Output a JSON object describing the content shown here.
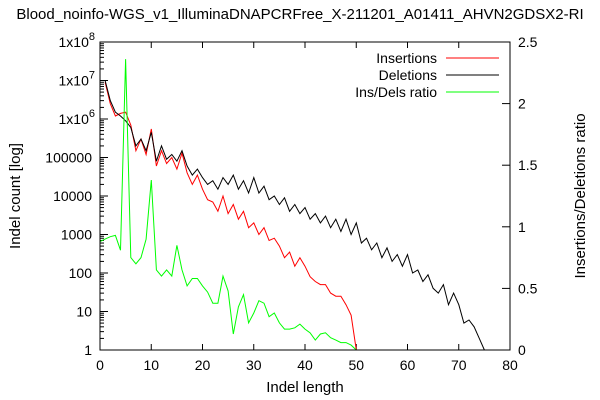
{
  "chart_data": {
    "type": "line",
    "title": "Blood_noinfo-WGS_v1_IlluminaDNAPCRFree_X-211201_A01411_AHVN2GDSX2-RI",
    "xlabel": "Indel length",
    "ylabel": "Indel count [log]",
    "y2label": "Insertions/Deletions ratio",
    "x_range": [
      0,
      80
    ],
    "y_scale": "log",
    "y_range": [
      1,
      100000000
    ],
    "y2_range": [
      0,
      2.5
    ],
    "x_ticks": [
      "0",
      "10",
      "20",
      "30",
      "40",
      "50",
      "60",
      "70",
      "80"
    ],
    "y_ticks": [
      "1",
      "10",
      "100",
      "1000",
      "10000",
      "100000",
      "1x10",
      "1x10",
      "1x10"
    ],
    "y_tick_exponents": [
      "",
      "",
      "",
      "",
      "",
      "",
      "6",
      "7",
      "8"
    ],
    "y2_ticks": [
      "0",
      "0.5",
      "1",
      "1.5",
      "2",
      "2.5"
    ],
    "legend_position": "top-right",
    "series": [
      {
        "name": "Insertions",
        "color": "#ff0000",
        "axis": "left",
        "x": [
          1,
          2,
          3,
          4,
          5,
          6,
          7,
          8,
          9,
          10,
          11,
          12,
          13,
          14,
          15,
          16,
          17,
          18,
          19,
          20,
          21,
          22,
          23,
          24,
          25,
          26,
          27,
          28,
          29,
          30,
          31,
          32,
          33,
          34,
          35,
          36,
          37,
          38,
          39,
          40,
          41,
          42,
          43,
          44,
          45,
          46,
          47,
          48,
          49,
          50
        ],
        "y": [
          9000000,
          2500000,
          1200000,
          1400000,
          1500000,
          700000,
          150000,
          300000,
          120000,
          550000,
          60000,
          150000,
          70000,
          100000,
          50000,
          130000,
          40000,
          20000,
          35000,
          15000,
          8000,
          7000,
          4000,
          10000,
          3500,
          6000,
          2500,
          4000,
          1500,
          2000,
          1000,
          1500,
          700,
          800,
          500,
          250,
          350,
          150,
          250,
          150,
          80,
          60,
          50,
          50,
          30,
          25,
          25,
          15,
          8,
          1
        ]
      },
      {
        "name": "Deletions",
        "color": "#000000",
        "axis": "left",
        "x": [
          1,
          2,
          3,
          4,
          5,
          6,
          7,
          8,
          9,
          10,
          11,
          12,
          13,
          14,
          15,
          16,
          17,
          18,
          19,
          20,
          21,
          22,
          23,
          24,
          25,
          26,
          27,
          28,
          29,
          30,
          31,
          32,
          33,
          34,
          35,
          36,
          37,
          38,
          39,
          40,
          41,
          42,
          43,
          44,
          45,
          46,
          47,
          48,
          49,
          50,
          51,
          52,
          53,
          54,
          55,
          56,
          57,
          58,
          59,
          60,
          61,
          62,
          63,
          64,
          65,
          66,
          67,
          68,
          69,
          70,
          71,
          72,
          73,
          74,
          75
        ],
        "y": [
          10000000,
          3000000,
          1500000,
          1200000,
          900000,
          600000,
          200000,
          300000,
          150000,
          450000,
          80000,
          200000,
          90000,
          120000,
          80000,
          150000,
          60000,
          35000,
          50000,
          30000,
          20000,
          25000,
          15000,
          30000,
          20000,
          35000,
          15000,
          25000,
          12000,
          30000,
          12000,
          18000,
          8000,
          10000,
          6000,
          9000,
          4000,
          6000,
          3500,
          5000,
          2500,
          3500,
          2000,
          3000,
          1500,
          2500,
          1200,
          2500,
          1000,
          2000,
          600,
          800,
          400,
          600,
          250,
          450,
          200,
          300,
          150,
          300,
          100,
          120,
          60,
          90,
          40,
          30,
          50,
          15,
          30,
          15,
          5,
          6,
          4,
          2,
          1
        ]
      },
      {
        "name": "Ins/Dels ratio",
        "color": "#00ff00",
        "axis": "right",
        "x": [
          0,
          1,
          2,
          3,
          4,
          5,
          6,
          7,
          8,
          9,
          10,
          11,
          12,
          13,
          14,
          15,
          16,
          17,
          18,
          19,
          20,
          21,
          22,
          23,
          24,
          25,
          26,
          27,
          28,
          29,
          30,
          31,
          32,
          33,
          34,
          35,
          36,
          37,
          38,
          39,
          40,
          41,
          42,
          43,
          44,
          45,
          46,
          47,
          48,
          49,
          50
        ],
        "y": [
          0.88,
          0.9,
          0.92,
          0.93,
          0.81,
          2.36,
          0.75,
          0.7,
          0.75,
          0.9,
          1.38,
          0.65,
          0.6,
          0.65,
          0.6,
          0.85,
          0.65,
          0.52,
          0.58,
          0.58,
          0.52,
          0.47,
          0.38,
          0.38,
          0.6,
          0.48,
          0.13,
          0.35,
          0.45,
          0.22,
          0.3,
          0.4,
          0.38,
          0.27,
          0.3,
          0.22,
          0.17,
          0.17,
          0.18,
          0.21,
          0.17,
          0.14,
          0.08,
          0.13,
          0.14,
          0.1,
          0.08,
          0.06,
          0.06,
          0.04,
          0
        ]
      }
    ]
  }
}
